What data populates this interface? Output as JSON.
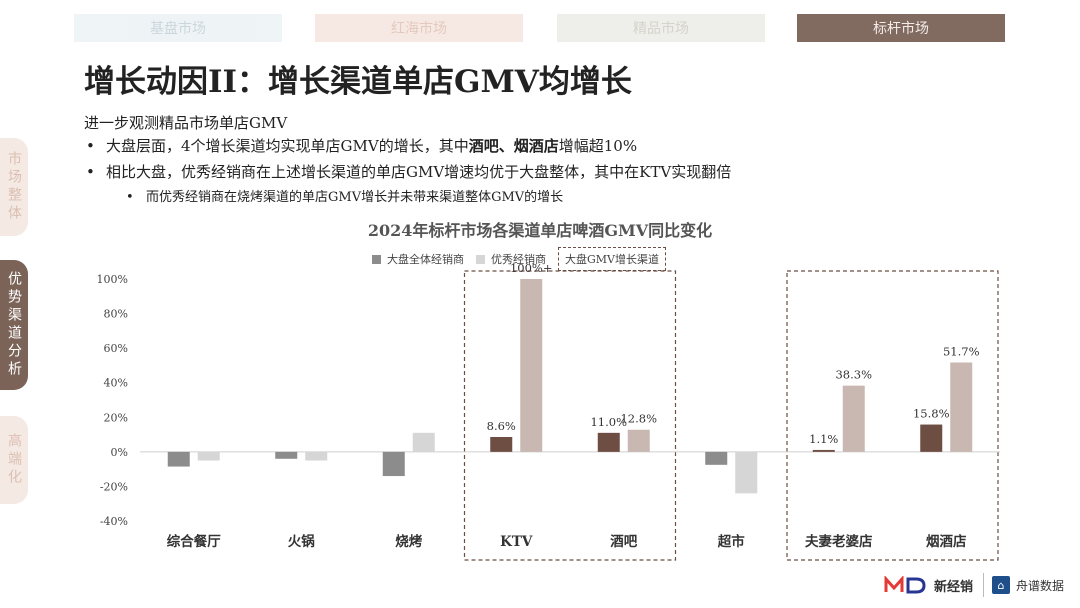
{
  "nav": {
    "tabs": [
      {
        "label": "基盘市场"
      },
      {
        "label": "红海市场"
      },
      {
        "label": "精品市场"
      },
      {
        "label": "标杆市场"
      }
    ],
    "side": [
      {
        "label": "市场整体"
      },
      {
        "label": "优势渠道分析"
      },
      {
        "label": "高端化"
      }
    ]
  },
  "title": "增长动因II：增长渠道单店GMV均增长",
  "intro": "进一步观测精品市场单店GMV",
  "bullets": {
    "b1_pre": "大盘层面，4个增长渠道均实现单店GMV的增长，其中",
    "b1_bold": "酒吧、烟酒店",
    "b1_post": "增幅超10%",
    "b2": "相比大盘，优秀经销商在上述增长渠道的单店GMV增速均优于大盘整体，其中在KTV实现翻倍",
    "b3": "而优秀经销商在烧烤渠道的单店GMV增长并未带来渠道整体GMV的增长"
  },
  "legend": {
    "l1": "大盘全体经销商",
    "l2": "优秀经销商",
    "l3": "大盘GMV增长渠道"
  },
  "footer": {
    "brand1": "新经销",
    "brand2": "舟谱数据"
  },
  "chart_data": {
    "type": "bar",
    "title": "2024年标杆市场各渠道单店啤酒GMV同比变化",
    "categories": [
      "综合餐厅",
      "火锅",
      "烧烤",
      "KTV",
      "酒吧",
      "超市",
      "夫妻老婆店",
      "烟酒店"
    ],
    "series": [
      {
        "name": "大盘全体经销商",
        "color": "#8c8c8c",
        "highlight_color": "#6e4e43",
        "values": [
          -8.5,
          -4,
          -14,
          8.6,
          11.0,
          -7.5,
          1.1,
          15.8
        ]
      },
      {
        "name": "优秀经销商",
        "color": "#d6d6d6",
        "highlight_color": "#c9b8b1",
        "values": [
          -5,
          -5,
          11,
          100,
          12.8,
          -24,
          38.3,
          51.7
        ]
      }
    ],
    "data_labels": [
      [
        null,
        null,
        null,
        "8.6%",
        "11.0%",
        null,
        "1.1%",
        "15.8%"
      ],
      [
        null,
        null,
        null,
        "100%+",
        "12.8%",
        null,
        "38.3%",
        "51.7%"
      ]
    ],
    "highlight_groups": [
      [
        "KTV",
        "酒吧"
      ],
      [
        "夫妻老婆店",
        "烟酒店"
      ]
    ],
    "ylim": [
      -40,
      100
    ],
    "yticks": [
      "100%",
      "80%",
      "60%",
      "40%",
      "20%",
      "0%",
      "-20%",
      "-40%"
    ],
    "ytick_values": [
      100,
      80,
      60,
      40,
      20,
      0,
      -20,
      -40
    ],
    "grid": false,
    "legend_position": "top-center"
  }
}
